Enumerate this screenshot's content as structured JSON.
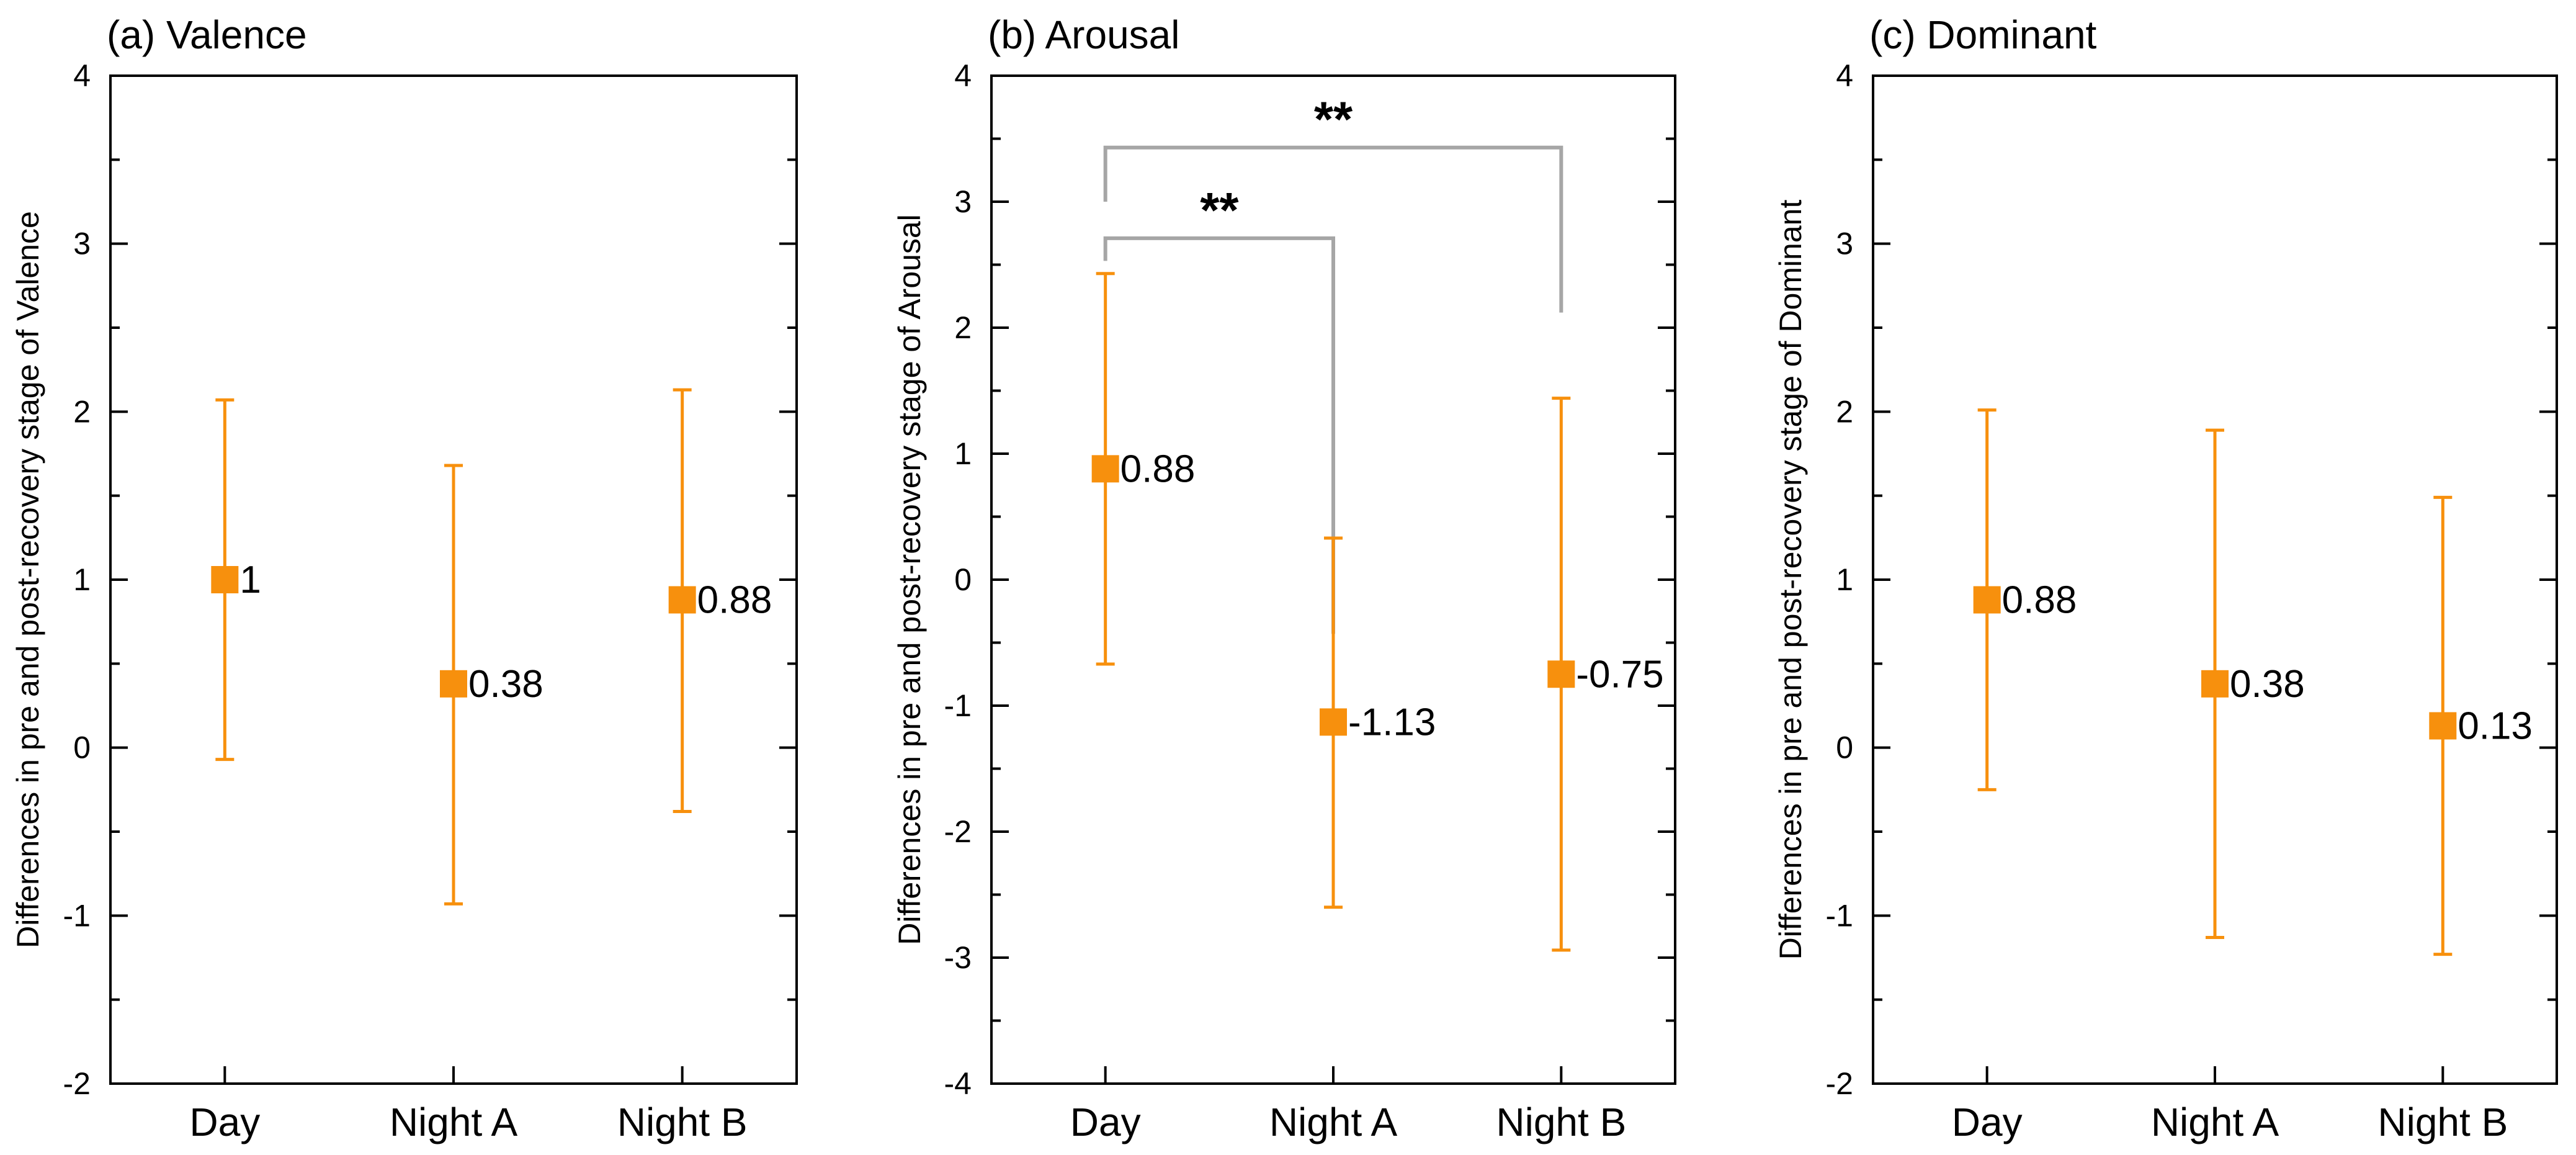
{
  "chart_data": [
    {
      "type": "scatter",
      "title": "(a) Valence",
      "ylabel": "Differences in pre and post-recovery stage of Valence",
      "xlabel": "",
      "ylim": [
        -2,
        4
      ],
      "yticks": [
        "-2",
        "-1",
        "0",
        "1",
        "2",
        "3",
        "4"
      ],
      "categories": [
        "Day",
        "Night A",
        "Night B"
      ],
      "values": [
        1,
        0.38,
        0.88
      ],
      "labels": [
        "1",
        "0.38",
        "0.88"
      ],
      "error_low": [
        -0.07,
        -0.93,
        -0.38
      ],
      "error_high": [
        2.07,
        1.68,
        2.13
      ],
      "marker_color": "#F7900D",
      "significance": []
    },
    {
      "type": "scatter",
      "title": "(b) Arousal",
      "ylabel": "Differences in pre and post-recovery stage of Arousal",
      "xlabel": "",
      "ylim": [
        -4,
        4
      ],
      "yticks": [
        "-4",
        "-3",
        "-2",
        "-1",
        "0",
        "1",
        "2",
        "3",
        "4"
      ],
      "categories": [
        "Day",
        "Night A",
        "Night B"
      ],
      "values": [
        0.88,
        -1.13,
        -0.75
      ],
      "labels": [
        "0.88",
        "-1.13",
        "-0.75"
      ],
      "error_low": [
        -0.67,
        -2.6,
        -2.94
      ],
      "error_high": [
        2.43,
        0.33,
        1.44
      ],
      "marker_color": "#F7900D",
      "significance": [
        {
          "from": "Day",
          "to": "Night A",
          "label": "**"
        },
        {
          "from": "Day",
          "to": "Night B",
          "label": "**"
        }
      ]
    },
    {
      "type": "scatter",
      "title": "(c) Dominant",
      "ylabel": "Differences in pre and post-recovery stage of Dominant",
      "xlabel": "",
      "ylim": [
        -2,
        4
      ],
      "yticks": [
        "-2",
        "-1",
        "0",
        "1",
        "2",
        "3",
        "4"
      ],
      "categories": [
        "Day",
        "Night A",
        "Night B"
      ],
      "values": [
        0.88,
        0.38,
        0.13
      ],
      "labels": [
        "0.88",
        "0.38",
        "0.13"
      ],
      "error_low": [
        -0.25,
        -1.13,
        -1.23
      ],
      "error_high": [
        2.01,
        1.89,
        1.49
      ],
      "marker_color": "#F7900D",
      "significance": []
    }
  ]
}
